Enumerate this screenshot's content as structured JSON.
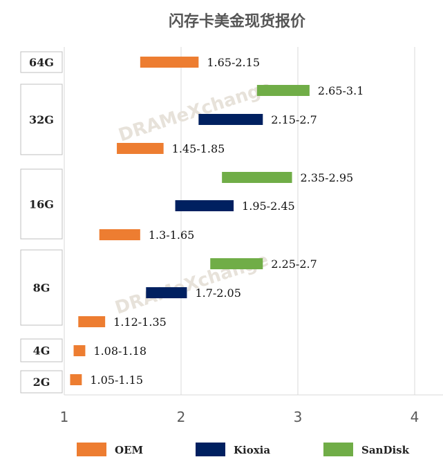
{
  "chart_data": {
    "type": "bar",
    "title": "闪存卡美金现货报价",
    "xlim": [
      1,
      4.25
    ],
    "xticks": [
      1,
      2,
      3,
      4
    ],
    "xtick_labels": [
      "1",
      "2",
      "3",
      "4"
    ],
    "grid": true,
    "legend_position": "bottom",
    "categories": [
      "64G",
      "32G",
      "16G",
      "8G",
      "4G",
      "2G"
    ],
    "series": [
      {
        "name": "OEM",
        "color": "#ed7d31"
      },
      {
        "name": "Kioxia",
        "color": "#002060"
      },
      {
        "name": "SanDisk",
        "color": "#70ad47"
      }
    ],
    "bars": [
      {
        "category": "64G",
        "series": "OEM",
        "low": 1.65,
        "high": 2.15,
        "label": "1.65-2.15"
      },
      {
        "category": "32G",
        "series": "SanDisk",
        "low": 2.65,
        "high": 3.1,
        "label": "2.65-3.1"
      },
      {
        "category": "32G",
        "series": "Kioxia",
        "low": 2.15,
        "high": 2.7,
        "label": "2.15-2.7"
      },
      {
        "category": "32G",
        "series": "OEM",
        "low": 1.45,
        "high": 1.85,
        "label": "1.45-1.85"
      },
      {
        "category": "16G",
        "series": "SanDisk",
        "low": 2.35,
        "high": 2.95,
        "label": "2.35-2.95"
      },
      {
        "category": "16G",
        "series": "Kioxia",
        "low": 1.95,
        "high": 2.45,
        "label": "1.95-2.45"
      },
      {
        "category": "16G",
        "series": "OEM",
        "low": 1.3,
        "high": 1.65,
        "label": "1.3-1.65"
      },
      {
        "category": "8G",
        "series": "SanDisk",
        "low": 2.25,
        "high": 2.7,
        "label": "2.25-2.7"
      },
      {
        "category": "8G",
        "series": "Kioxia",
        "low": 1.7,
        "high": 2.05,
        "label": "1.7-2.05"
      },
      {
        "category": "8G",
        "series": "OEM",
        "low": 1.12,
        "high": 1.35,
        "label": "1.12-1.35"
      },
      {
        "category": "4G",
        "series": "OEM",
        "low": 1.08,
        "high": 1.18,
        "label": "1.08-1.18"
      },
      {
        "category": "2G",
        "series": "OEM",
        "low": 1.05,
        "high": 1.15,
        "label": "1.05-1.15"
      }
    ],
    "watermark": "DRAMeXchange"
  }
}
